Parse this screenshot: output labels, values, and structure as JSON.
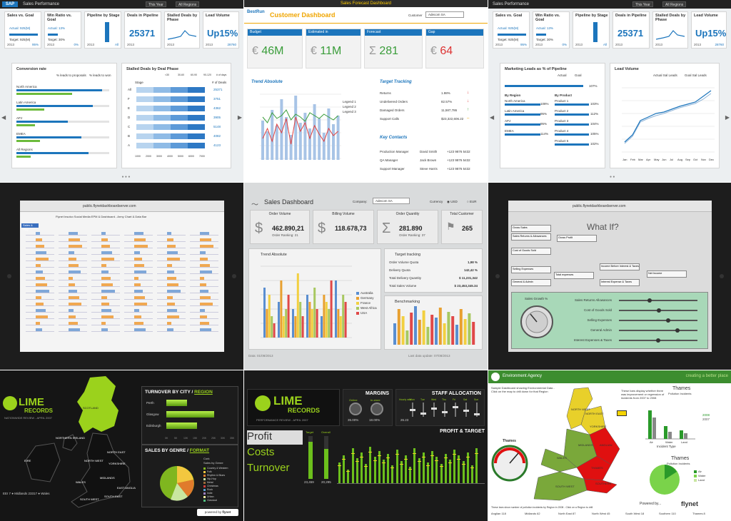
{
  "t1": {
    "app_title": "Sales Performance",
    "filter_year": "This Year",
    "filter_region": "All Regions",
    "kpis": [
      {
        "title": "Sales vs. Goal",
        "line1": "Actual: 925(M)",
        "line2": "Target: 925(M)",
        "foot": "2013",
        "foot_right": "95%"
      },
      {
        "title": "Win Ratio vs. Goal",
        "line1": "Actual: 13%",
        "line2": "Target: 30%",
        "foot": "2013",
        "foot_right": "0%"
      },
      {
        "title": "Pipeline by Stage",
        "foot": "2013",
        "foot_right": "All"
      },
      {
        "title": "Deals in Pipeline",
        "value": "25371",
        "foot": "2013"
      },
      {
        "title": "Stalled Deals by Phase",
        "foot": "2013"
      },
      {
        "title": "Lead Volume",
        "value": "Up15%",
        "foot": "2013",
        "foot_right": "28760"
      }
    ],
    "conversion_title": "Conversion rate",
    "legend_a": "% leads to proposals",
    "legend_b": "% leads to won",
    "regions": [
      "North America",
      "Latin America",
      "APJ",
      "EMEA",
      "All Regions"
    ],
    "region_values_a": [
      0.92,
      0.82,
      0.55,
      0.7,
      0.78
    ],
    "region_values_b": [
      0.6,
      0.3,
      0.2,
      0.25,
      0.15
    ],
    "stalled_title": "Stalled Deals by Deal Phase",
    "stalled_legend": [
      "<30",
      "30-60",
      "60-90",
      "90-120",
      "# of days"
    ],
    "stage_col": "Stage",
    "deals_col": "# of Deals",
    "stages": [
      "All",
      "F",
      "E",
      "D",
      "C",
      "B",
      "A"
    ],
    "stage_counts": [
      "25371",
      "3751",
      "4362",
      "3905",
      "5148",
      "4082",
      "4123"
    ],
    "axis": [
      "1000",
      "2000",
      "3000",
      "4000",
      "5000",
      "6000",
      "7000"
    ]
  },
  "t2": {
    "top_label": "Sales Forecast Dashboard",
    "brand": "BestRun",
    "title": "Customer Dashboard",
    "customer_label": "Customer",
    "customer_value": "Adecom SA",
    "cards": [
      {
        "title": "Budget",
        "value": "46M",
        "glyph": "€"
      },
      {
        "title": "Estimated in",
        "value": "11M",
        "glyph": "€"
      },
      {
        "title": "Forecast",
        "value": "281",
        "glyph": "Σ"
      },
      {
        "title": "Gap",
        "value": "64",
        "glyph": "€"
      }
    ],
    "trend_title": "Trend Absolute",
    "legend": [
      "Legend 1",
      "Legend 2",
      "Legend 3"
    ],
    "target_title": "Target Tracking",
    "targets": [
      {
        "label": "Returns",
        "value": "1.98%"
      },
      {
        "label": "Undelivered Orders",
        "value": "82.57%"
      },
      {
        "label": "Damaged Orders",
        "value": "11,587,786"
      },
      {
        "label": "Support Calls",
        "value": "$23,322,606.22"
      }
    ],
    "contacts_title": "Key Contacts",
    "contacts": [
      {
        "role": "Production Manager",
        "name": "David Smith",
        "phone": "+123 9876 5432"
      },
      {
        "role": "QA Manager",
        "name": "Jack Brown",
        "phone": "+123 9876 5432"
      },
      {
        "role": "Support Manager",
        "name": "Steve Harris",
        "phone": "+123 9876 5432"
      }
    ]
  },
  "t3": {
    "app_title": "Sales Performance",
    "filter_year": "This Year",
    "filter_region": "All Regions",
    "kpis": [
      {
        "title": "Sales vs. Goal",
        "line1": "Actual: 925(M)",
        "line2": "Target: 925(M)",
        "foot": "2013",
        "foot_right": "95%"
      },
      {
        "title": "Win Ratio vs. Goal",
        "line1": "Actual: 13%",
        "line2": "Target: 30%",
        "foot": "2013",
        "foot_right": "0%"
      },
      {
        "title": "Pipeline by Stage",
        "foot": "2013",
        "foot_right": "All"
      },
      {
        "title": "Deals in Pipeline",
        "value": "25371",
        "foot": "2013"
      },
      {
        "title": "Stalled Deals by Phase",
        "foot": "2013"
      },
      {
        "title": "Lead Volume",
        "value": "Up15%",
        "foot": "2013",
        "foot_right": "28760"
      }
    ],
    "marketing_title": "Marketing Leads as % of Pipeline",
    "legend_a": "Actual",
    "legend_b": "Goal",
    "total_pct": "107%",
    "by_region": "By Region",
    "by_product": "By Product",
    "regions": [
      {
        "label": "North America",
        "pct": "108%"
      },
      {
        "label": "Latin America",
        "pct": "95%"
      },
      {
        "label": "APJ",
        "pct": "95%"
      },
      {
        "label": "EMEA",
        "pct": "114%"
      }
    ],
    "products": [
      {
        "label": "Product 1",
        "pct": "103%"
      },
      {
        "label": "Product 2",
        "pct": "112%"
      },
      {
        "label": "Product 3",
        "pct": "104%"
      },
      {
        "label": "Product 4",
        "pct": "105%"
      },
      {
        "label": "Product 5",
        "pct": "102%"
      }
    ],
    "lead_title": "Lead Volume",
    "lead_legend": [
      "Actual Sal Leads",
      "Goal Sal Leads"
    ],
    "months": [
      "Jan",
      "Feb",
      "Mar",
      "Apr",
      "May",
      "Jun",
      "Jul",
      "Aug",
      "Sep",
      "Oct",
      "Nov",
      "Dec"
    ]
  },
  "t4": {
    "url": "public.flynetdashboardserver.com",
    "title": "Flynet Insolvo Social Media EPM & Dashboard - Army Chart & Data Bar",
    "section_top": "Sales & Play"
  },
  "t5": {
    "title": "Sales Dashboard",
    "company_label": "Company:",
    "company_value": "Adecom SA",
    "currency_label": "Currency",
    "currency_a": "USD",
    "currency_b": "EUR",
    "cards": [
      {
        "title": "Order Volume",
        "value": "462.890,21",
        "sub": "Order Ranking: 21",
        "glyph": "$"
      },
      {
        "title": "Billing Volume",
        "value": "118.678,73",
        "sub": "",
        "glyph": "$"
      },
      {
        "title": "Order Quantity",
        "value": "281.890",
        "sub": "Order Ranking: 37",
        "glyph": "Σ"
      },
      {
        "title": "Total Customer",
        "value": "265",
        "sub": "",
        "glyph": "⚑"
      }
    ],
    "trend_title": "Trend Absolute",
    "target_title": "Target tracking",
    "targets": [
      {
        "label": "Order Volume Quota",
        "value": "1,98 %"
      },
      {
        "label": "Delivery Quota",
        "value": "142,42 %"
      },
      {
        "label": "Total Delivery Quantity",
        "value": "$ 11,231,342"
      },
      {
        "label": "Total Sales Volume",
        "value": "$ 23,453,345.34"
      }
    ],
    "bench_title": "Benchmarking",
    "legend": [
      "Australia",
      "Germany",
      "France",
      "West Africa",
      "USA"
    ],
    "footer_left": "Data: 01/08/2013",
    "footer_right": "Last data update: 07/08/2013"
  },
  "t6": {
    "url": "public.flynetdashboardserver.com",
    "title": "What If?",
    "nodes": [
      "Gross Sales",
      "Sales Returns & Allowances",
      "Gross Profit",
      "Cost of Goods Sold",
      "Selling Expenses",
      "Total expenses",
      "General & Admin",
      "Income Before Interest & Taxes",
      "Net Income",
      "Interest Expense & Taxes"
    ],
    "gauge_label": "Sales Growth %",
    "sliders": [
      "Sales Returns Allowances",
      "Cost of Goods Sold",
      "Selling Expenses",
      "General Admin",
      "Interest Expenses & Taxes"
    ]
  },
  "t7": {
    "brand": "LIME",
    "brand_sub": "RECORDS",
    "tagline": "NATIONWIDE REVIEW - APRIL 2007",
    "regions": [
      "NORTHERN IRELAND",
      "SCOTLAND",
      "NORTH EAST",
      "NORTH WEST",
      "YORKSHIRE",
      "EIRE",
      "MIDLANDS",
      "WALES",
      "EAST ANGLIA",
      "SOUTH WEST",
      "SOUTH EAST"
    ],
    "city_title": "TURNOVER BY CITY /",
    "city_link": "REGION",
    "cities": [
      "Perth",
      "Glasgow",
      "Edinburgh"
    ],
    "city_values": [
      0.3,
      0.7,
      0.45
    ],
    "city_axis": [
      "0K",
      "5K",
      "10K",
      "15K",
      "20K",
      "25K",
      "30K",
      "35K"
    ],
    "genre_title": "SALES BY GENRE /",
    "genre_link": "FORMAT",
    "genre_tag": "Cork",
    "genre_sub": "Sales by Genre",
    "genres": [
      "Country & Western",
      "Folk",
      "Rhythm & Blues",
      "Hip-Hop",
      "Metal",
      "Christmas",
      "Rock",
      "Indie",
      "Urban",
      "Classical"
    ],
    "footer_left": "EEI 7 ● Midlands 23317 ● Wales",
    "powered": "powered by",
    "powered_brand": "flynet"
  },
  "t8": {
    "brand": "LIME",
    "brand_sub": "RECORDS",
    "tagline": "PERFORMANCE REVIEW - APRIL 2007",
    "margins_title": "MARGINS",
    "margin_labels": [
      "Online",
      "In-store"
    ],
    "margin_values": [
      "35.00%",
      "18.00%"
    ],
    "staff_title": "STAFF ALLOCATION",
    "staff_cols": [
      "Hourly rate",
      "Mon",
      "Tue",
      "Wed",
      "Thu",
      "Fri",
      "Sat",
      "Sun"
    ],
    "staff_value": "26.23",
    "pt_title": "PROFIT & TARGET",
    "tabs": [
      "Profit",
      "Costs",
      "Turnover"
    ],
    "target_label": "Target",
    "overall_label": "Overall",
    "target_value": "23,459",
    "overall_value": "20,295"
  },
  "t9": {
    "agency": "Environment Agency",
    "slogan": "creating a better place",
    "intro": "Sample Dashboard showing Environmental Data - Click on the map to drill down for that Region",
    "note": "These bars display whether there was improvement or regression of incidents from 2007 to 2008",
    "regions": [
      "NORTH WEST",
      "NORTH EAST",
      "YORKSHIRE",
      "MIDLANDS",
      "ANGLIAN",
      "WALES",
      "THAMES",
      "SOUTH WEST",
      "SOUTHERN"
    ],
    "gauge_title": "Thames",
    "chart_title": "Thames",
    "chart_sub": "Pollution Incidents",
    "legend": [
      "2008",
      "2007"
    ],
    "chart_xlabel": "Incident Type",
    "types": [
      "Air",
      "Water",
      "Land"
    ],
    "pie_title": "Thames",
    "pie_sub": "Pollution Incidents",
    "pie_legend": [
      "Air",
      "Water",
      "Land"
    ],
    "powered": "Powered by...",
    "powered_brand": "flynet",
    "footer_note": "These bars show number of pollution incidents by Region in 2008 - Click on a Region to drill",
    "footer_items": [
      "Anglian 118",
      "Midlands 62",
      "North East 87",
      "North West 45",
      "South West 18",
      "Southern 110",
      "Thames 8"
    ]
  }
}
